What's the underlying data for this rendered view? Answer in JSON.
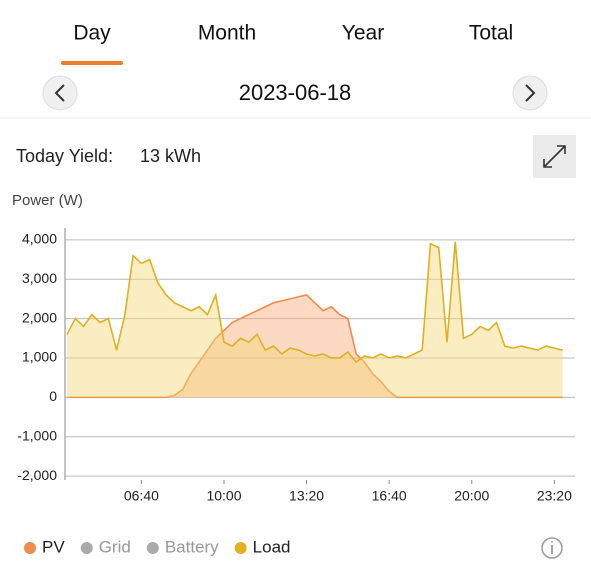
{
  "tabs": [
    "Day",
    "Month",
    "Year",
    "Total"
  ],
  "active_tab": 0,
  "date": "2023-06-18",
  "yield": {
    "label": "Today Yield:",
    "value": "13 kWh"
  },
  "chart_data": {
    "type": "line",
    "y_label": "Power (W)",
    "x": [
      220,
      240,
      260,
      280,
      300,
      320,
      340,
      360,
      380,
      400,
      420,
      440,
      460,
      480,
      500,
      520,
      540,
      560,
      580,
      600,
      620,
      640,
      660,
      680,
      700,
      720,
      740,
      760,
      780,
      800,
      820,
      840,
      860,
      880,
      900,
      920,
      940,
      960,
      980,
      1000,
      1020,
      1040,
      1060,
      1080,
      1100,
      1120,
      1140,
      1160,
      1180,
      1200,
      1220,
      1240,
      1260,
      1280,
      1300,
      1320,
      1340,
      1360,
      1380,
      1400,
      1420
    ],
    "xlim": [
      215,
      1450
    ],
    "xticks": [
      {
        "value": 400,
        "label": "06:40"
      },
      {
        "value": 600,
        "label": "10:00"
      },
      {
        "value": 800,
        "label": "13:20"
      },
      {
        "value": 1000,
        "label": "16:40"
      },
      {
        "value": 1200,
        "label": "20:00"
      },
      {
        "value": 1400,
        "label": "23:20"
      }
    ],
    "ylim": [
      -2100,
      4300
    ],
    "yticks": [
      {
        "value": 4000,
        "label": "4,000"
      },
      {
        "value": 3000,
        "label": "3,000"
      },
      {
        "value": 2000,
        "label": "2,000"
      },
      {
        "value": 1000,
        "label": "1,000"
      },
      0,
      {
        "value": -1000,
        "label": "-1,000"
      },
      {
        "value": -2000,
        "label": "-2,000"
      }
    ],
    "grid": true,
    "series": [
      {
        "name": "PV",
        "color": "#f08c4a",
        "fill": "rgba(248,170,120,0.45)",
        "visible": true,
        "values": [
          0,
          0,
          0,
          0,
          0,
          0,
          0,
          0,
          0,
          0,
          0,
          0,
          0,
          50,
          200,
          600,
          900,
          1200,
          1500,
          1700,
          1900,
          2000,
          2100,
          2200,
          2300,
          2400,
          2450,
          2500,
          2550,
          2600,
          2400,
          2200,
          2300,
          2100,
          2000,
          1100,
          900,
          600,
          400,
          150,
          0,
          0,
          0,
          0,
          0,
          0,
          0,
          0,
          0,
          0,
          0,
          0,
          0,
          0,
          0,
          0,
          0,
          0,
          0,
          0,
          0
        ]
      },
      {
        "name": "Grid",
        "color": "#aaaaaa",
        "visible": false
      },
      {
        "name": "Battery",
        "color": "#aaaaaa",
        "visible": false
      },
      {
        "name": "Load",
        "color": "#e0b020",
        "fill": "rgba(245,215,120,0.45)",
        "visible": true,
        "values": [
          1600,
          2000,
          1800,
          2100,
          1900,
          2000,
          1200,
          2100,
          3600,
          3400,
          3500,
          2900,
          2600,
          2400,
          2300,
          2200,
          2300,
          2100,
          2600,
          1400,
          1300,
          1500,
          1400,
          1600,
          1200,
          1300,
          1100,
          1250,
          1200,
          1100,
          1050,
          1100,
          1000,
          1000,
          1150,
          900,
          1050,
          1000,
          1100,
          1000,
          1050,
          1000,
          1100,
          1200,
          3900,
          3800,
          1400,
          3950,
          1500,
          1600,
          1800,
          1700,
          1900,
          1300,
          1250,
          1300,
          1250,
          1200,
          1300,
          1250,
          1200
        ]
      }
    ]
  }
}
